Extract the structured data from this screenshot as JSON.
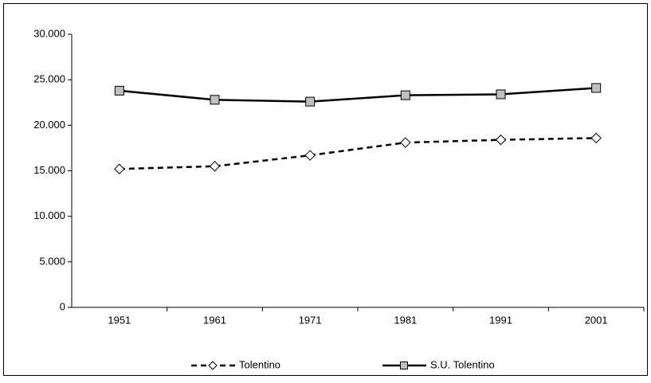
{
  "chart_data": {
    "type": "line",
    "categories": [
      "1951",
      "1961",
      "1971",
      "1981",
      "1991",
      "2001"
    ],
    "series": [
      {
        "name": "Tolentino",
        "color": "#000000",
        "dash": true,
        "marker": "diamond",
        "marker_fill": "#ffffff",
        "values": [
          15200,
          15500,
          16700,
          18100,
          18400,
          18600
        ]
      },
      {
        "name": "S.U. Tolentino",
        "color": "#000000",
        "dash": false,
        "marker": "square",
        "marker_fill": "#c0c0c0",
        "values": [
          23800,
          22800,
          22600,
          23300,
          23400,
          24100
        ]
      }
    ],
    "ylim": [
      0,
      30000
    ],
    "yticks": [
      0,
      {
        "value": 5000,
        "label": "5.000"
      },
      {
        "value": 10000,
        "label": "10.000"
      },
      {
        "value": 15000,
        "label": "15.000"
      },
      {
        "value": 20000,
        "label": "20.000"
      },
      {
        "value": 25000,
        "label": "25.000"
      },
      {
        "value": 30000,
        "label": "30.000"
      }
    ],
    "grid": false,
    "legend": "bottom"
  }
}
